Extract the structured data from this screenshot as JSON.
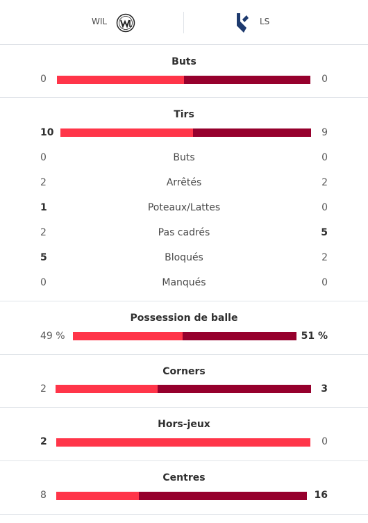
{
  "header": {
    "home_team": "WIL",
    "away_team": "LS"
  },
  "colors": {
    "home": "#ff3549",
    "away": "#96002d"
  },
  "stats": {
    "goals": {
      "title": "Buts",
      "home": "0",
      "away": "0",
      "home_share": 0.5
    },
    "shots": {
      "title": "Tirs",
      "home": "10",
      "away": "9",
      "home_share": 0.53
    },
    "possession": {
      "title": "Possession de balle",
      "home": "49 %",
      "away": "51 %",
      "home_share": 0.49
    },
    "corners": {
      "title": "Corners",
      "home": "2",
      "away": "3",
      "home_share": 0.4
    },
    "offsides": {
      "title": "Hors-jeux",
      "home": "2",
      "away": "0",
      "home_share": 1.0
    },
    "crosses": {
      "title": "Centres",
      "home": "8",
      "away": "16",
      "home_share": 0.33
    }
  },
  "shot_details": [
    {
      "label": "Buts",
      "home": "0",
      "away": "0"
    },
    {
      "label": "Arrêtés",
      "home": "2",
      "away": "2"
    },
    {
      "label": "Poteaux/Lattes",
      "home": "1",
      "away": "0"
    },
    {
      "label": "Pas cadrés",
      "home": "2",
      "away": "5"
    },
    {
      "label": "Bloqués",
      "home": "5",
      "away": "2"
    },
    {
      "label": "Manqués",
      "home": "0",
      "away": "0"
    }
  ]
}
